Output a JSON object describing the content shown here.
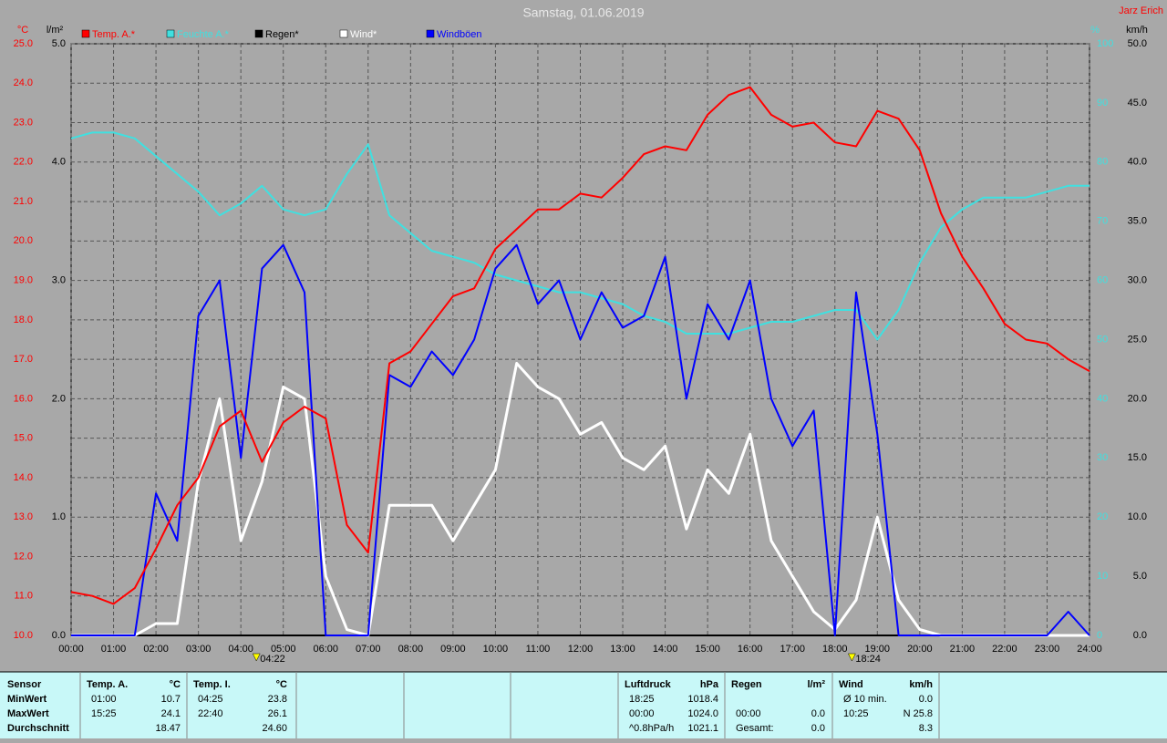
{
  "chart_data": {
    "type": "line",
    "title": "Samstag, 01.06.2019",
    "author": "Jarz Erich",
    "y_label": "°C",
    "y2_label": "l/m²",
    "y3_label": "%",
    "y4_label": "km/h",
    "grid": true,
    "x": [
      0,
      0.5,
      1,
      1.5,
      2,
      2.5,
      3,
      3.5,
      4,
      4.5,
      5,
      5.5,
      6,
      6.5,
      7,
      7.5,
      8,
      8.5,
      9,
      9.5,
      10,
      10.5,
      11,
      11.5,
      12,
      12.5,
      13,
      13.5,
      14,
      14.5,
      15,
      15.5,
      16,
      16.5,
      17,
      17.5,
      18,
      18.5,
      19,
      19.5,
      20,
      20.5,
      21,
      21.5,
      22,
      22.5,
      23,
      23.5,
      24
    ],
    "xlim": [
      0,
      24
    ],
    "xticks": [
      {
        "value": 0,
        "label": "00:00"
      },
      {
        "value": 1,
        "label": "01:00"
      },
      {
        "value": 2,
        "label": "02:00"
      },
      {
        "value": 3,
        "label": "03:00"
      },
      {
        "value": 4,
        "label": "04:00"
      },
      {
        "value": 5,
        "label": "05:00"
      },
      {
        "value": 6,
        "label": "06:00"
      },
      {
        "value": 7,
        "label": "07:00"
      },
      {
        "value": 8,
        "label": "08:00"
      },
      {
        "value": 9,
        "label": "09:00"
      },
      {
        "value": 10,
        "label": "10:00"
      },
      {
        "value": 11,
        "label": "11:00"
      },
      {
        "value": 12,
        "label": "12:00"
      },
      {
        "value": 13,
        "label": "13:00"
      },
      {
        "value": 14,
        "label": "14:00"
      },
      {
        "value": 15,
        "label": "15:00"
      },
      {
        "value": 16,
        "label": "16:00"
      },
      {
        "value": 17,
        "label": "17:00"
      },
      {
        "value": 18,
        "label": "18:00"
      },
      {
        "value": 19,
        "label": "19:00"
      },
      {
        "value": 20,
        "label": "20:00"
      },
      {
        "value": 21,
        "label": "21:00"
      },
      {
        "value": 22,
        "label": "22:00"
      },
      {
        "value": 23,
        "label": "23:00"
      },
      {
        "value": 24,
        "label": "24:00"
      }
    ],
    "ylim": [
      10,
      25
    ],
    "yticks": [
      {
        "value": 10,
        "label": "10.0"
      },
      {
        "value": 11,
        "label": "11.0"
      },
      {
        "value": 12,
        "label": "12.0"
      },
      {
        "value": 13,
        "label": "13.0"
      },
      {
        "value": 14,
        "label": "14.0"
      },
      {
        "value": 15,
        "label": "15.0"
      },
      {
        "value": 16,
        "label": "16.0"
      },
      {
        "value": 17,
        "label": "17.0"
      },
      {
        "value": 18,
        "label": "18.0"
      },
      {
        "value": 19,
        "label": "19.0"
      },
      {
        "value": 20,
        "label": "20.0"
      },
      {
        "value": 21,
        "label": "21.0"
      },
      {
        "value": 22,
        "label": "22.0"
      },
      {
        "value": 23,
        "label": "23.0"
      },
      {
        "value": 24,
        "label": "24.0"
      },
      {
        "value": 25,
        "label": "25.0"
      }
    ],
    "y2lim": [
      0,
      5
    ],
    "y2ticks": [
      {
        "value": 0,
        "label": "0.0"
      },
      {
        "value": 1,
        "label": "1.0"
      },
      {
        "value": 2,
        "label": "2.0"
      },
      {
        "value": 3,
        "label": "3.0"
      },
      {
        "value": 4,
        "label": "4.0"
      },
      {
        "value": 5,
        "label": "5.0"
      }
    ],
    "y3lim": [
      0,
      100
    ],
    "y3ticks": [
      0,
      10,
      20,
      30,
      40,
      50,
      60,
      70,
      80,
      90,
      100
    ],
    "y4lim": [
      0,
      50
    ],
    "y4ticks": [
      {
        "value": 0,
        "label": "0.0"
      },
      {
        "value": 5,
        "label": "5.0"
      },
      {
        "value": 10,
        "label": "10.0"
      },
      {
        "value": 15,
        "label": "15.0"
      },
      {
        "value": 20,
        "label": "20.0"
      },
      {
        "value": 25,
        "label": "25.0"
      },
      {
        "value": 30,
        "label": "30.0"
      },
      {
        "value": 35,
        "label": "35.0"
      },
      {
        "value": 40,
        "label": "40.0"
      },
      {
        "value": 45,
        "label": "45.0"
      },
      {
        "value": 50,
        "label": "50.0"
      }
    ],
    "markers": [
      {
        "x": 4.3667,
        "label": "04:22"
      },
      {
        "x": 18.4,
        "label": "18:24"
      }
    ],
    "series": [
      {
        "name": "Temp. A.*",
        "color": "#ff0000",
        "axis": "y",
        "values": [
          11.1,
          11.0,
          10.8,
          11.2,
          12.2,
          13.3,
          14.0,
          15.3,
          15.7,
          14.4,
          15.4,
          15.8,
          15.5,
          12.8,
          12.1,
          16.9,
          17.2,
          17.9,
          18.6,
          18.8,
          19.8,
          20.3,
          20.8,
          20.8,
          21.2,
          21.1,
          21.6,
          22.2,
          22.4,
          22.3,
          23.2,
          23.7,
          23.9,
          23.2,
          22.9,
          23.0,
          22.5,
          22.4,
          23.3,
          23.1,
          22.3,
          20.7,
          19.6,
          18.8,
          17.9,
          17.5,
          17.4,
          17.0,
          16.7
        ]
      },
      {
        "name": "Feuchte A.*",
        "color": "#40e0e0",
        "axis": "y3",
        "values": [
          84,
          85,
          85,
          84,
          81,
          78,
          75,
          71,
          73,
          76,
          72,
          71,
          72,
          78,
          83,
          71,
          68,
          65,
          64,
          63,
          61,
          60,
          59,
          58,
          58,
          57,
          56,
          54,
          53,
          51,
          51,
          51,
          52,
          53,
          53,
          54,
          55,
          55,
          50,
          55,
          63,
          69,
          72,
          74,
          74,
          74,
          75,
          76,
          76
        ]
      },
      {
        "name": "Regen*",
        "color": "#000000",
        "axis": "y2",
        "values": [
          0,
          0,
          0,
          0,
          0,
          0,
          0,
          0,
          0,
          0,
          0,
          0,
          0,
          0,
          0,
          0,
          0,
          0,
          0,
          0,
          0,
          0,
          0,
          0,
          0,
          0,
          0,
          0,
          0,
          0,
          0,
          0,
          0,
          0,
          0,
          0,
          0,
          0,
          0,
          0,
          0,
          0,
          0,
          0,
          0,
          0,
          0,
          0,
          0
        ]
      },
      {
        "name": "Wind*",
        "color": "#ffffff",
        "axis": "y4",
        "values": [
          0,
          0,
          0,
          0,
          1,
          1,
          13,
          20,
          8,
          13,
          21,
          20,
          5,
          0.5,
          0,
          11,
          11,
          11,
          8,
          11,
          14,
          23,
          21,
          20,
          17,
          18,
          15,
          14,
          16,
          9,
          14,
          12,
          17,
          8,
          5,
          2,
          0.5,
          3,
          10,
          3,
          0.5,
          0,
          0,
          0,
          0,
          0,
          0,
          0,
          0
        ]
      },
      {
        "name": "Windböen",
        "color": "#0000ff",
        "axis": "y4",
        "values": [
          0,
          0,
          0,
          0,
          12,
          8,
          27,
          30,
          15,
          31,
          33,
          29,
          0,
          0,
          0,
          22,
          21,
          24,
          22,
          25,
          31,
          33,
          28,
          30,
          25,
          29,
          26,
          27,
          32,
          20,
          28,
          25,
          30,
          20,
          16,
          19,
          0,
          29,
          17,
          0,
          0,
          0,
          0,
          0,
          0,
          0,
          0,
          2,
          0
        ]
      }
    ]
  },
  "stats": {
    "labels": [
      "Sensor",
      "MinWert",
      "MaxWert",
      "Durchschnitt"
    ],
    "groups": [
      {
        "name": "Temp. A.",
        "unit": "°C",
        "rows": [
          [
            "01:00",
            "10.7"
          ],
          [
            "15:25",
            "24.1"
          ],
          [
            null,
            "18.47"
          ]
        ]
      },
      {
        "name": "Temp. I.",
        "unit": "°C",
        "rows": [
          [
            "04:25",
            "23.8"
          ],
          [
            "22:40",
            "26.1"
          ],
          [
            null,
            "24.60"
          ]
        ]
      },
      {
        "name": "Luftdruck",
        "unit": "hPa",
        "rows": [
          [
            "18:25",
            "1018.4"
          ],
          [
            "00:00",
            "1024.0"
          ],
          [
            "^0.8hPa/h",
            "1021.1"
          ]
        ]
      },
      {
        "name": "Regen",
        "unit": "l/m²",
        "rows": [
          [
            null,
            null
          ],
          [
            "00:00",
            "0.0"
          ],
          [
            "Gesamt:",
            "0.0"
          ]
        ]
      },
      {
        "name": "Wind",
        "unit": "km/h",
        "rows": [
          [
            "Ø 10 min.",
            "0.0"
          ],
          [
            "10:25",
            "N 25.8"
          ],
          [
            null,
            "8.3"
          ]
        ]
      }
    ]
  }
}
